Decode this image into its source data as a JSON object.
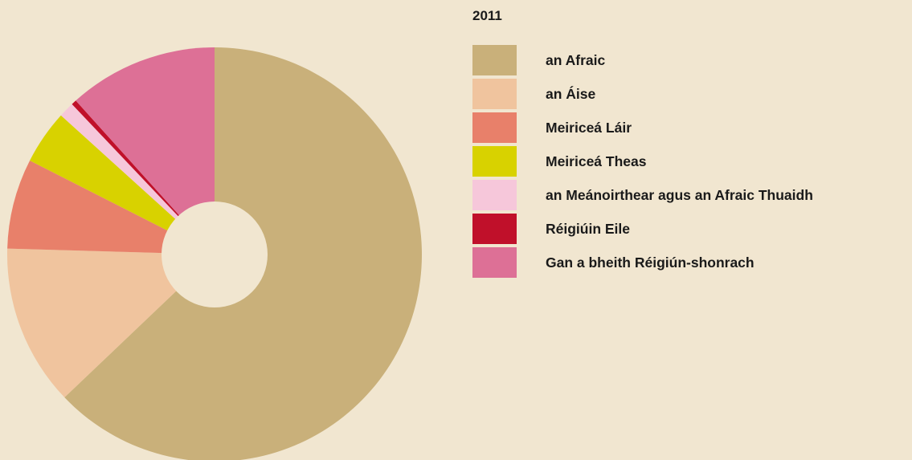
{
  "chart_data": {
    "type": "pie",
    "title": "2011",
    "categories": [
      "an Afraic",
      "an Áise",
      "Meiriceá Láir",
      "Meiriceá Theas",
      "an Meánoirthear agus an Afraic Thuaidh",
      "Réigiúin Eile",
      "Gan a bheith Réigiún-shonrach"
    ],
    "values": [
      62.5,
      12.5,
      7.0,
      4.2,
      1.2,
      0.4,
      11.6
    ],
    "unit": "%",
    "colors": [
      "#c9b07a",
      "#f0c49e",
      "#e8806a",
      "#d8d200",
      "#f6c7da",
      "#c0102a",
      "#dd7096"
    ],
    "start_angle_deg": 0,
    "direction": "clockwise",
    "donut_hole": true,
    "legend_position": "right"
  }
}
